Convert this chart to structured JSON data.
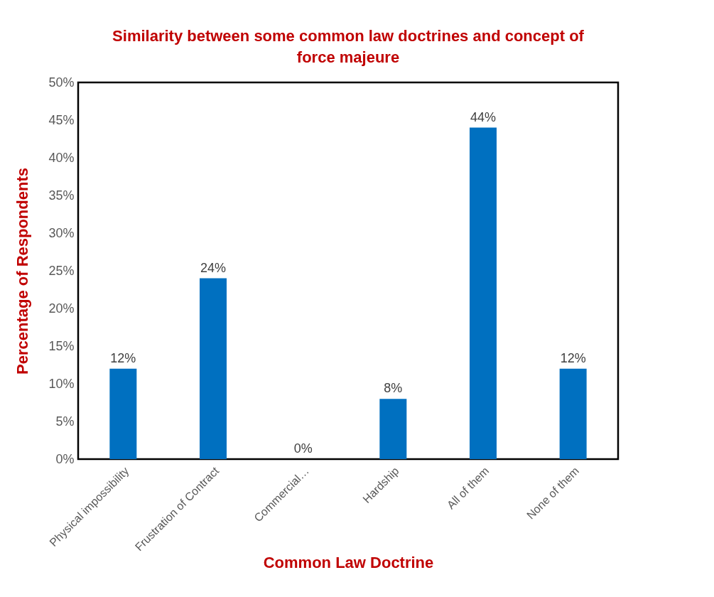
{
  "chart_data": {
    "type": "bar",
    "title": "Similarity between some common law doctrines and concept of force majeure",
    "xlabel": "Common Law Doctrine",
    "ylabel": "Percentage of Respondents",
    "categories": [
      "Physical impossibility",
      "Frustration of Contract",
      "Commercial…",
      "Hardship",
      "All of them",
      "None of them"
    ],
    "values": [
      12,
      24,
      0,
      8,
      44,
      12
    ],
    "value_labels": [
      "12%",
      "24%",
      "0%",
      "8%",
      "44%",
      "12%"
    ],
    "color": "#0070c0",
    "ylim": [
      0,
      50
    ],
    "yticks": [
      {
        "value": 0,
        "label": "0%"
      },
      {
        "value": 5,
        "label": "5%"
      },
      {
        "value": 10,
        "label": "10%"
      },
      {
        "value": 15,
        "label": "15%"
      },
      {
        "value": 20,
        "label": "20%"
      },
      {
        "value": 25,
        "label": "25%"
      },
      {
        "value": 30,
        "label": "30%"
      },
      {
        "value": 35,
        "label": "35%"
      },
      {
        "value": 40,
        "label": "40%"
      },
      {
        "value": 45,
        "label": "45%"
      },
      {
        "value": 50,
        "label": "50%"
      }
    ],
    "grid": false
  }
}
